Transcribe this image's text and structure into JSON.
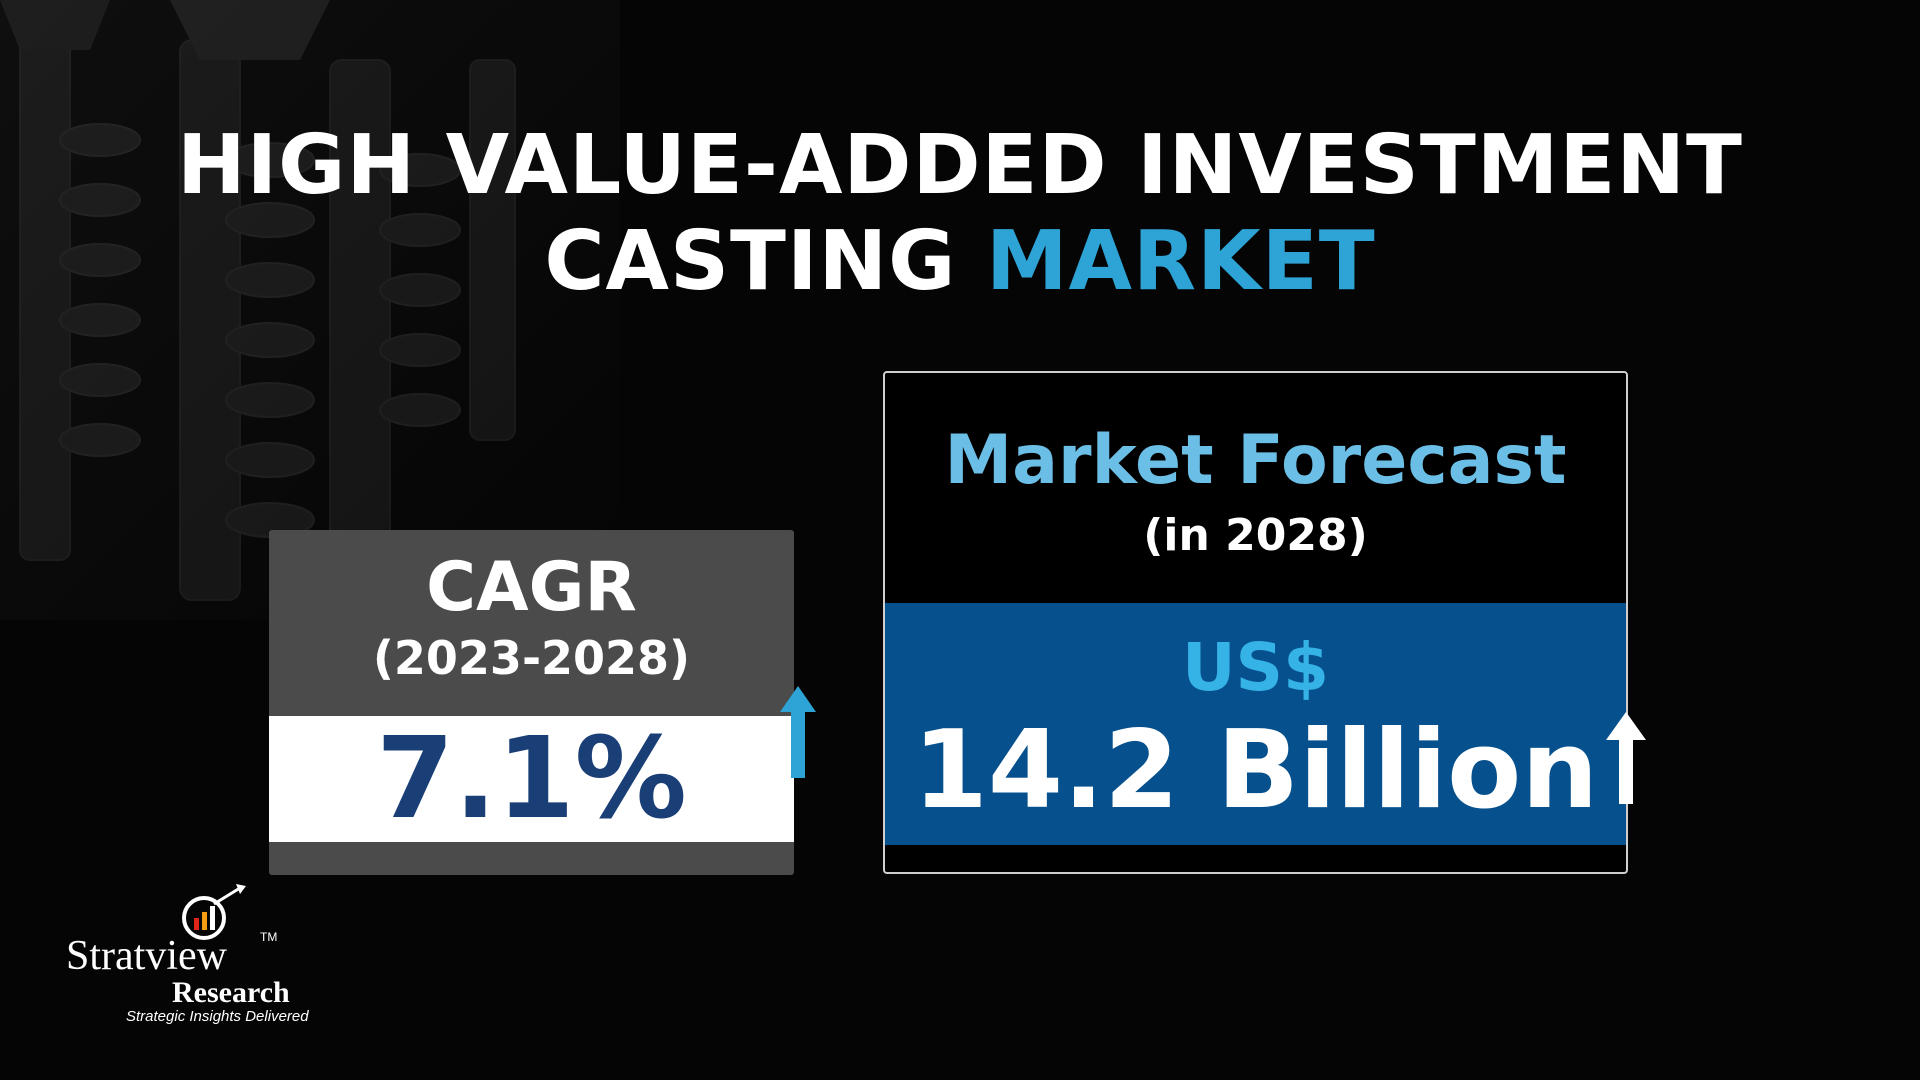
{
  "title": {
    "line1": "HIGH VALUE-ADDED INVESTMENT",
    "line2_part1": "CASTING ",
    "line2_accent": "MARKET"
  },
  "cagr": {
    "label": "CAGR",
    "period": "(2023-2028)",
    "value": "7.1%",
    "arrow_icon": "arrow-up-icon"
  },
  "forecast": {
    "label": "Market Forecast",
    "year": "(in 2028)",
    "currency": "US$",
    "value": "14.2 Billion",
    "arrow_icon": "arrow-up-icon"
  },
  "brand": {
    "name": "Stratview",
    "trademark": "TM",
    "subname": "Research",
    "tagline": "Strategic Insights Delivered",
    "logo_icon": "magnifier-chart-icon"
  },
  "colors": {
    "background": "#050505",
    "accent_blue": "#2ea3d6",
    "forecast_title": "#6bbfe6",
    "cagr_value": "#1a3f76",
    "forecast_band": "#06518d",
    "cagr_card": "#4b4b4b"
  }
}
